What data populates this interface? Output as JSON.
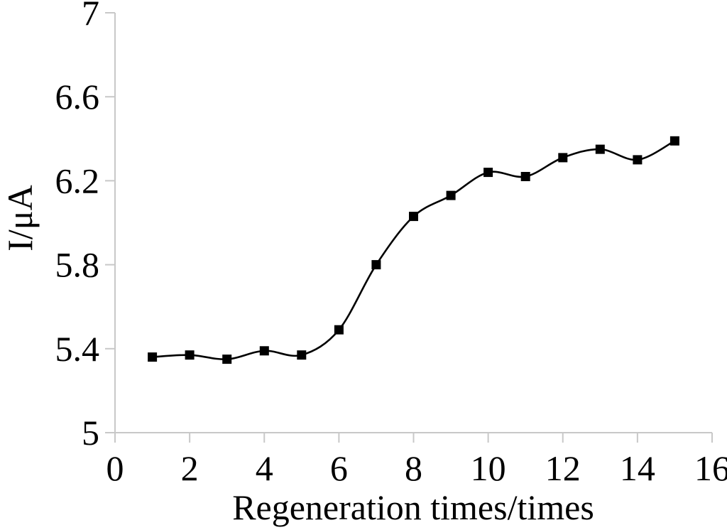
{
  "chart_data": {
    "type": "line",
    "title": "",
    "xlabel": "Regeneration times/times",
    "ylabel": "I/μA",
    "x": [
      1,
      2,
      3,
      4,
      5,
      6,
      7,
      8,
      9,
      10,
      11,
      12,
      13,
      14,
      15
    ],
    "y": [
      5.36,
      5.37,
      5.35,
      5.39,
      5.37,
      5.49,
      5.8,
      6.03,
      6.13,
      6.24,
      6.22,
      6.31,
      6.35,
      6.3,
      6.39
    ],
    "xlim": [
      0,
      16
    ],
    "ylim": [
      5,
      7
    ],
    "xticks": {
      "values": [
        0,
        2,
        4,
        6,
        8,
        10,
        12,
        14,
        16
      ],
      "labels": [
        "0",
        "2",
        "4",
        "6",
        "8",
        "10",
        "12",
        "14",
        "16"
      ]
    },
    "yticks": {
      "values": [
        5,
        5.4,
        5.8,
        6.2,
        6.6,
        7
      ],
      "labels": [
        "5",
        "5.4",
        "5.8",
        "6.2",
        "6.6",
        "7"
      ]
    },
    "grid": false,
    "legend": "none",
    "marker": "square",
    "line_smooth": true,
    "colors": {
      "series": "#000000",
      "axis": "#c8c8c8",
      "background": "#ffffff",
      "text": "#000000"
    }
  }
}
